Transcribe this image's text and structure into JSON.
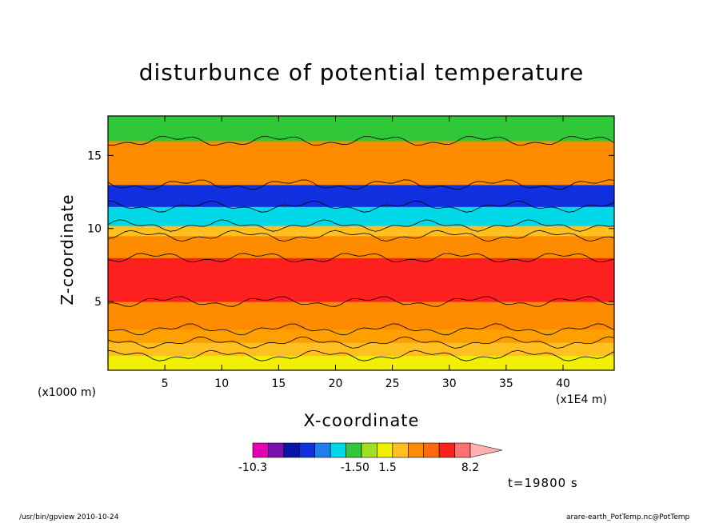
{
  "chart_data": {
    "type": "contour",
    "title": "disturbunce of potential temperature",
    "xlabel": "X-coordinate",
    "ylabel": "Z-coordinate",
    "x_unit_note": "(x1E4 m)",
    "y_unit_note": "(x1000 m)",
    "xlim": [
      0,
      44.5
    ],
    "ylim": [
      0.3,
      17.7
    ],
    "xticks": [
      5,
      10,
      15,
      20,
      25,
      30,
      35,
      40
    ],
    "yticks": [
      5,
      10,
      15
    ],
    "time_label": "t=19800 s",
    "colorbar": {
      "labels": [
        "-10.3",
        "-1.50",
        "1.5",
        "8.2"
      ],
      "colors": [
        "#e600b4",
        "#7a10b0",
        "#0a14a8",
        "#1030e0",
        "#1e7ef0",
        "#00d8e8",
        "#30c838",
        "#a0e020",
        "#f0f000",
        "#ffc020",
        "#ff8c00",
        "#ff6a10",
        "#ff2020",
        "#ff7070",
        "#ffb0b0"
      ]
    },
    "bands": [
      {
        "zmin": 0.3,
        "zmax": 1.3,
        "color": "#f0f000"
      },
      {
        "zmin": 1.3,
        "zmax": 2.2,
        "color": "#ffc020"
      },
      {
        "zmin": 2.2,
        "zmax": 3.1,
        "color": "#ffa000"
      },
      {
        "zmin": 3.1,
        "zmax": 5.0,
        "color": "#ff8c00"
      },
      {
        "zmin": 5.0,
        "zmax": 8.0,
        "color": "#ff2020"
      },
      {
        "zmin": 8.0,
        "zmax": 9.5,
        "color": "#ff8c00"
      },
      {
        "zmin": 9.5,
        "zmax": 10.2,
        "color": "#ffc020"
      },
      {
        "zmin": 10.2,
        "zmax": 11.5,
        "color": "#00d8e8"
      },
      {
        "zmin": 11.5,
        "zmax": 13.0,
        "color": "#1030e0"
      },
      {
        "zmin": 13.0,
        "zmax": 16.0,
        "color": "#ff8c00"
      },
      {
        "zmin": 16.0,
        "zmax": 17.7,
        "color": "#30c838"
      }
    ]
  },
  "footer": {
    "left": "/usr/bin/gpview   2010-10-24",
    "right": "arare-earth_PotTemp.nc@PotTemp"
  }
}
